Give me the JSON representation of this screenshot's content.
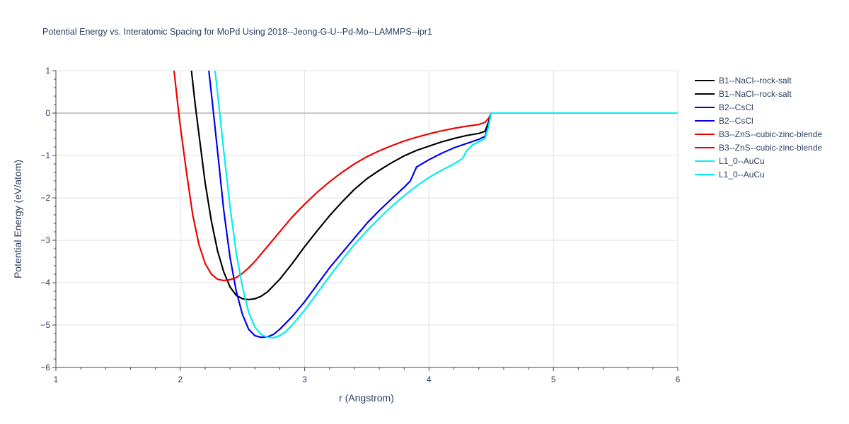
{
  "chart_data": {
    "type": "line",
    "title": "Potential Energy vs. Interatomic Spacing for MoPd Using 2018--Jeong-G-U--Pd-Mo--LAMMPS--ipr1",
    "xlabel": "r (Angstrom)",
    "ylabel": "Potential Energy (eV/atom)",
    "xlim": [
      1,
      6
    ],
    "ylim": [
      -6,
      1
    ],
    "xticks": [
      1,
      2,
      3,
      4,
      5,
      6
    ],
    "yticks": [
      1,
      0,
      -1,
      -2,
      -3,
      -4,
      -5,
      -6
    ],
    "xtick_labels": [
      "1",
      "2",
      "3",
      "4",
      "5",
      "6"
    ],
    "ytick_labels": [
      "1",
      "0",
      "−1",
      "−2",
      "−3",
      "−4",
      "−5",
      "−6"
    ],
    "grid": true,
    "legend_position": "right",
    "series": [
      {
        "name": "B1--NaCl--rock-salt",
        "color": "#000000",
        "x": [
          2.09,
          2.12,
          2.15,
          2.2,
          2.25,
          2.3,
          2.35,
          2.4,
          2.45,
          2.5,
          2.55,
          2.6,
          2.65,
          2.7,
          2.8,
          2.9,
          3.0,
          3.1,
          3.2,
          3.3,
          3.4,
          3.5,
          3.6,
          3.7,
          3.8,
          3.9,
          4.0,
          4.1,
          4.2,
          4.3,
          4.4,
          4.45,
          4.48,
          4.5,
          6.0
        ],
        "y": [
          1.0,
          0.2,
          -0.5,
          -1.65,
          -2.55,
          -3.25,
          -3.75,
          -4.1,
          -4.3,
          -4.38,
          -4.4,
          -4.38,
          -4.32,
          -4.22,
          -3.92,
          -3.55,
          -3.15,
          -2.78,
          -2.42,
          -2.1,
          -1.8,
          -1.55,
          -1.35,
          -1.17,
          -1.01,
          -0.88,
          -0.78,
          -0.68,
          -0.6,
          -0.53,
          -0.48,
          -0.43,
          -0.2,
          0.0,
          0.0
        ]
      },
      {
        "name": "B1--NaCl--rock-salt",
        "color": "#000000",
        "x": [
          2.09,
          2.12,
          2.15,
          2.2,
          2.25,
          2.3,
          2.35,
          2.4,
          2.45,
          2.5,
          2.55,
          2.6,
          2.65,
          2.7,
          2.8,
          2.9,
          3.0,
          3.1,
          3.2,
          3.3,
          3.4,
          3.5,
          3.6,
          3.7,
          3.8,
          3.9,
          4.0,
          4.1,
          4.2,
          4.3,
          4.4,
          4.45,
          4.48,
          4.5,
          6.0
        ],
        "y": [
          1.0,
          0.2,
          -0.5,
          -1.65,
          -2.55,
          -3.25,
          -3.75,
          -4.1,
          -4.3,
          -4.38,
          -4.4,
          -4.38,
          -4.32,
          -4.22,
          -3.92,
          -3.55,
          -3.15,
          -2.78,
          -2.42,
          -2.1,
          -1.8,
          -1.55,
          -1.35,
          -1.17,
          -1.01,
          -0.88,
          -0.78,
          -0.68,
          -0.6,
          -0.53,
          -0.48,
          -0.43,
          -0.2,
          0.0,
          0.0
        ]
      },
      {
        "name": "B2--CsCl",
        "color": "#0000ee",
        "x": [
          2.23,
          2.26,
          2.3,
          2.35,
          2.4,
          2.45,
          2.5,
          2.55,
          2.6,
          2.65,
          2.7,
          2.75,
          2.8,
          2.9,
          3.0,
          3.1,
          3.2,
          3.3,
          3.4,
          3.5,
          3.6,
          3.7,
          3.8,
          3.85,
          3.9,
          4.0,
          4.1,
          4.2,
          4.3,
          4.4,
          4.45,
          4.48,
          4.5,
          6.0
        ],
        "y": [
          1.0,
          0.2,
          -0.9,
          -2.3,
          -3.4,
          -4.2,
          -4.75,
          -5.1,
          -5.25,
          -5.29,
          -5.28,
          -5.22,
          -5.1,
          -4.8,
          -4.45,
          -4.05,
          -3.65,
          -3.3,
          -2.95,
          -2.6,
          -2.3,
          -2.02,
          -1.75,
          -1.6,
          -1.27,
          -1.1,
          -0.95,
          -0.82,
          -0.72,
          -0.62,
          -0.55,
          -0.25,
          0.0,
          0.0
        ]
      },
      {
        "name": "B2--CsCl",
        "color": "#0000ee",
        "x": [
          2.23,
          2.26,
          2.3,
          2.35,
          2.4,
          2.45,
          2.5,
          2.55,
          2.6,
          2.65,
          2.7,
          2.75,
          2.8,
          2.9,
          3.0,
          3.1,
          3.2,
          3.3,
          3.4,
          3.5,
          3.6,
          3.7,
          3.8,
          3.85,
          3.9,
          4.0,
          4.1,
          4.2,
          4.3,
          4.4,
          4.45,
          4.48,
          4.5,
          6.0
        ],
        "y": [
          1.0,
          0.2,
          -0.9,
          -2.3,
          -3.4,
          -4.2,
          -4.75,
          -5.1,
          -5.25,
          -5.29,
          -5.28,
          -5.22,
          -5.1,
          -4.8,
          -4.45,
          -4.05,
          -3.65,
          -3.3,
          -2.95,
          -2.6,
          -2.3,
          -2.02,
          -1.75,
          -1.6,
          -1.27,
          -1.1,
          -0.95,
          -0.82,
          -0.72,
          -0.62,
          -0.55,
          -0.25,
          0.0,
          0.0
        ]
      },
      {
        "name": "B3--ZnS--cubic-zinc-blende",
        "color": "#ee0000",
        "x": [
          1.95,
          1.98,
          2.0,
          2.05,
          2.1,
          2.15,
          2.2,
          2.25,
          2.3,
          2.35,
          2.4,
          2.45,
          2.5,
          2.55,
          2.6,
          2.7,
          2.8,
          2.9,
          3.0,
          3.1,
          3.2,
          3.3,
          3.4,
          3.5,
          3.6,
          3.7,
          3.8,
          3.9,
          4.0,
          4.1,
          4.2,
          4.3,
          4.4,
          4.45,
          4.48,
          4.5,
          6.0
        ],
        "y": [
          1.0,
          0.2,
          -0.3,
          -1.4,
          -2.4,
          -3.1,
          -3.55,
          -3.8,
          -3.92,
          -3.95,
          -3.93,
          -3.88,
          -3.78,
          -3.65,
          -3.5,
          -3.15,
          -2.8,
          -2.45,
          -2.15,
          -1.87,
          -1.62,
          -1.4,
          -1.2,
          -1.03,
          -0.89,
          -0.77,
          -0.66,
          -0.57,
          -0.49,
          -0.42,
          -0.36,
          -0.31,
          -0.27,
          -0.22,
          -0.12,
          0.0,
          0.0
        ]
      },
      {
        "name": "B3--ZnS--cubic-zinc-blende",
        "color": "#ee0000",
        "x": [
          1.95,
          1.98,
          2.0,
          2.05,
          2.1,
          2.15,
          2.2,
          2.25,
          2.3,
          2.35,
          2.4,
          2.45,
          2.5,
          2.55,
          2.6,
          2.7,
          2.8,
          2.9,
          3.0,
          3.1,
          3.2,
          3.3,
          3.4,
          3.5,
          3.6,
          3.7,
          3.8,
          3.9,
          4.0,
          4.1,
          4.2,
          4.3,
          4.4,
          4.45,
          4.48,
          4.5,
          6.0
        ],
        "y": [
          1.0,
          0.2,
          -0.3,
          -1.4,
          -2.4,
          -3.1,
          -3.55,
          -3.8,
          -3.92,
          -3.95,
          -3.93,
          -3.88,
          -3.78,
          -3.65,
          -3.5,
          -3.15,
          -2.8,
          -2.45,
          -2.15,
          -1.87,
          -1.62,
          -1.4,
          -1.2,
          -1.03,
          -0.89,
          -0.77,
          -0.66,
          -0.57,
          -0.49,
          -0.42,
          -0.36,
          -0.31,
          -0.27,
          -0.22,
          -0.12,
          0.0,
          0.0
        ]
      },
      {
        "name": "L1_0--AuCu",
        "color": "#00eeee",
        "x": [
          2.28,
          2.31,
          2.35,
          2.4,
          2.45,
          2.5,
          2.55,
          2.6,
          2.65,
          2.7,
          2.75,
          2.8,
          2.85,
          2.9,
          3.0,
          3.1,
          3.2,
          3.3,
          3.4,
          3.5,
          3.6,
          3.7,
          3.8,
          3.9,
          4.0,
          4.1,
          4.2,
          4.27,
          4.3,
          4.35,
          4.4,
          4.45,
          4.48,
          4.5,
          6.0
        ],
        "y": [
          1.0,
          0.2,
          -0.9,
          -2.2,
          -3.3,
          -4.1,
          -4.7,
          -5.05,
          -5.22,
          -5.29,
          -5.3,
          -5.25,
          -5.15,
          -5.0,
          -4.65,
          -4.25,
          -3.85,
          -3.47,
          -3.1,
          -2.78,
          -2.48,
          -2.2,
          -1.95,
          -1.72,
          -1.52,
          -1.35,
          -1.2,
          -1.07,
          -0.9,
          -0.75,
          -0.68,
          -0.6,
          -0.3,
          0.0,
          0.0
        ]
      },
      {
        "name": "L1_0--AuCu",
        "color": "#00eeee",
        "x": [
          2.28,
          2.31,
          2.35,
          2.4,
          2.45,
          2.5,
          2.55,
          2.6,
          2.65,
          2.7,
          2.75,
          2.8,
          2.85,
          2.9,
          3.0,
          3.1,
          3.2,
          3.3,
          3.4,
          3.5,
          3.6,
          3.7,
          3.8,
          3.9,
          4.0,
          4.1,
          4.2,
          4.27,
          4.3,
          4.35,
          4.4,
          4.45,
          4.48,
          4.5,
          6.0
        ],
        "y": [
          1.0,
          0.2,
          -0.9,
          -2.2,
          -3.3,
          -4.1,
          -4.7,
          -5.05,
          -5.22,
          -5.29,
          -5.3,
          -5.25,
          -5.15,
          -5.0,
          -4.65,
          -4.25,
          -3.85,
          -3.47,
          -3.1,
          -2.78,
          -2.48,
          -2.2,
          -1.95,
          -1.72,
          -1.52,
          -1.35,
          -1.2,
          -1.07,
          -0.9,
          -0.75,
          -0.68,
          -0.6,
          -0.3,
          0.0,
          0.0
        ]
      }
    ]
  }
}
